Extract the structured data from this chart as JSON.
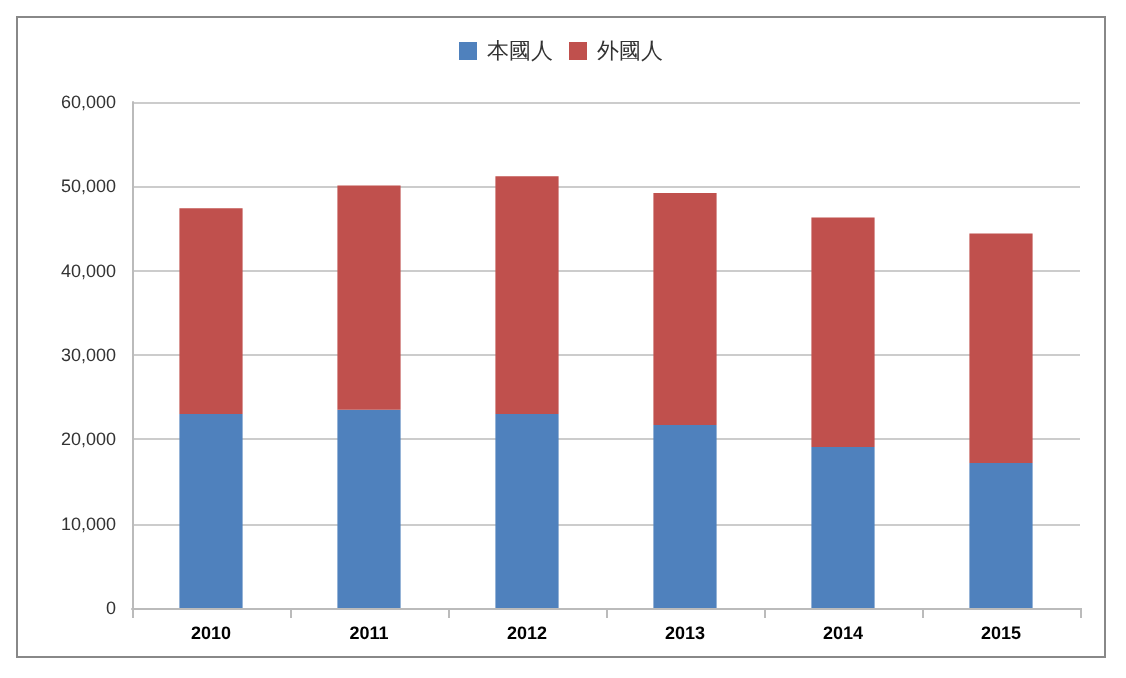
{
  "chart_data": {
    "type": "bar",
    "stacked": true,
    "categories": [
      "2010",
      "2011",
      "2012",
      "2013",
      "2014",
      "2015"
    ],
    "series": [
      {
        "name": "本國人",
        "color": "#4f81bd",
        "values": [
          23000,
          23500,
          23000,
          21700,
          19100,
          17200
        ]
      },
      {
        "name": "外國人",
        "color": "#c0504d",
        "values": [
          24400,
          26600,
          28200,
          27500,
          27200,
          27200
        ]
      }
    ],
    "ylim": [
      0,
      60000
    ],
    "yticks": [
      0,
      {
        "value": 10000,
        "label": "10,000"
      },
      {
        "value": 20000,
        "label": "20,000"
      },
      {
        "value": 30000,
        "label": "30,000"
      },
      {
        "value": 40000,
        "label": "40,000"
      },
      {
        "value": 50000,
        "label": "50,000"
      },
      {
        "value": 60000,
        "label": "60,000"
      }
    ],
    "grid": "y",
    "legend": "top"
  }
}
